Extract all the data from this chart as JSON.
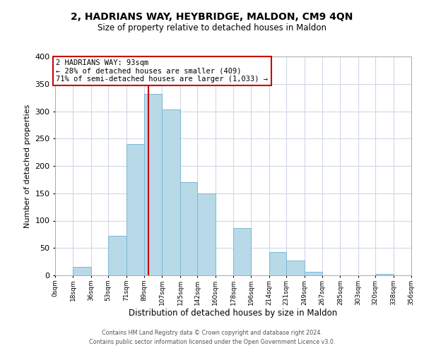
{
  "title": "2, HADRIANS WAY, HEYBRIDGE, MALDON, CM9 4QN",
  "subtitle": "Size of property relative to detached houses in Maldon",
  "xlabel": "Distribution of detached houses by size in Maldon",
  "ylabel": "Number of detached properties",
  "bar_edges": [
    0,
    18,
    36,
    53,
    71,
    89,
    107,
    125,
    142,
    160,
    178,
    196,
    214,
    231,
    249,
    267,
    285,
    303,
    320,
    338,
    356
  ],
  "bar_heights": [
    0,
    15,
    0,
    72,
    240,
    332,
    303,
    170,
    150,
    0,
    87,
    0,
    42,
    27,
    6,
    0,
    0,
    0,
    2,
    0
  ],
  "bar_color": "#b8d9e8",
  "bar_edgecolor": "#7fb8d4",
  "vline_x": 93,
  "vline_color": "#cc0000",
  "annotation_text": "2 HADRIANS WAY: 93sqm\n← 28% of detached houses are smaller (409)\n71% of semi-detached houses are larger (1,033) →",
  "annotation_box_edgecolor": "#cc0000",
  "annotation_box_facecolor": "#ffffff",
  "ylim": [
    0,
    400
  ],
  "yticks": [
    0,
    50,
    100,
    150,
    200,
    250,
    300,
    350,
    400
  ],
  "xtick_labels": [
    "0sqm",
    "18sqm",
    "36sqm",
    "53sqm",
    "71sqm",
    "89sqm",
    "107sqm",
    "125sqm",
    "142sqm",
    "160sqm",
    "178sqm",
    "196sqm",
    "214sqm",
    "231sqm",
    "249sqm",
    "267sqm",
    "285sqm",
    "303sqm",
    "320sqm",
    "338sqm",
    "356sqm"
  ],
  "footer1": "Contains HM Land Registry data © Crown copyright and database right 2024.",
  "footer2": "Contains public sector information licensed under the Open Government Licence v3.0.",
  "background_color": "#ffffff",
  "grid_color": "#d0d8e8",
  "title_fontsize": 10,
  "subtitle_fontsize": 8.5,
  "ylabel_fontsize": 8,
  "xlabel_fontsize": 8.5
}
